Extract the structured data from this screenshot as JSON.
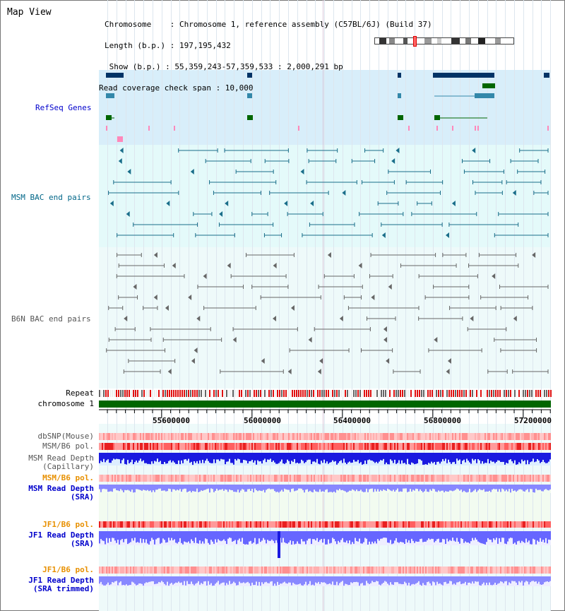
{
  "title": "Map View",
  "info": {
    "chromosome": "Chromosome    : Chromosome 1, reference assembly (C57BL/6J) (Build 37)",
    "length": "Length (b.p.) : 197,195,432",
    "show": " Show (b.p.) : 55,359,243-57,359,533 : 2,000,291 bp",
    "span": "Read coverage check span : 10,000"
  },
  "tracks": {
    "refseq": "RefSeq Genes",
    "msm_bac": "MSM BAC end pairs",
    "b6n_bac": "B6N BAC end pairs",
    "repeat": "Repeat",
    "chromosome": "chromosome 1",
    "dbsnp": "dbSNP(Mouse)",
    "msm_b6_pol": "MSM/B6 pol.",
    "msm_read_depth": "MSM Read Depth",
    "capillary": "(Capillary)",
    "msm_b6_pol2": "MSM/B6 pol.",
    "msm_read_depth2": "MSM Read Depth",
    "sra": "(SRA)",
    "jf1_b6_pol": "JF1/B6 pol.",
    "jf1_read_depth": "JF1 Read Depth",
    "sra2": "(SRA)",
    "jf1_b6_pol2": "JF1/B6 pol.",
    "jf1_read_depth2": "JF1 Read Depth",
    "sra_trimmed": "(SRA trimmed)"
  },
  "axis": {
    "ticks": [
      "55600000",
      "56000000",
      "56400000",
      "56800000",
      "57200000"
    ]
  },
  "colors": {
    "refseq_bg": "#d8eefa",
    "bac_bg": "#e4fafa",
    "lower_bg": "#eefafa",
    "jf1_bg": "#f2fbf0",
    "refseq_label": "#0000cc",
    "msm_label": "#006688",
    "b6n_label": "#555555",
    "orange_label": "#e89000",
    "blue_label": "#0000cc",
    "chromosome_bar": "#006600"
  }
}
